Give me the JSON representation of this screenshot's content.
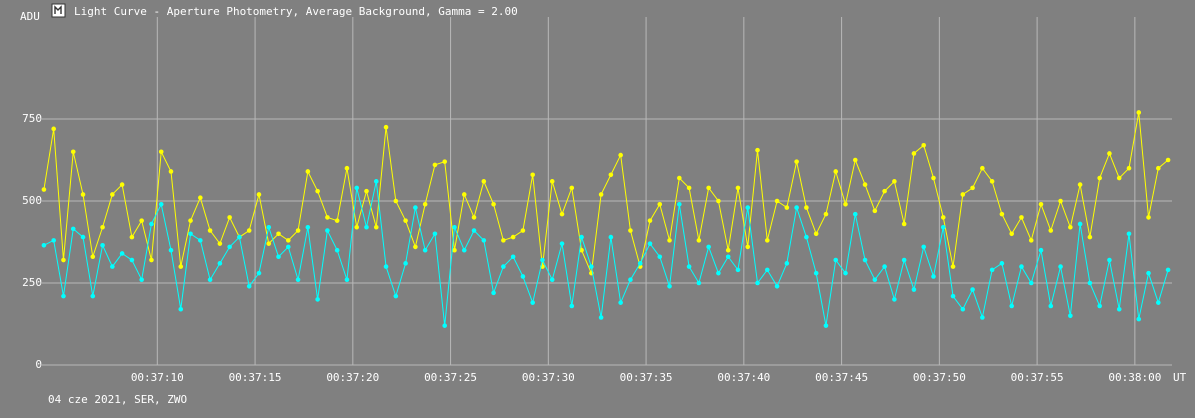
{
  "chart_data": {
    "type": "line",
    "title": "Light Curve - Aperture Photometry, Average Background, Gamma = 2.00",
    "y_label": "ADU",
    "x_label": "UT",
    "footer": "04 cze 2021, SER, ZWO",
    "grid": true,
    "xlim": [
      2224.0,
      2281.9
    ],
    "ylim": [
      0,
      1061
    ],
    "yticks": [
      0,
      250,
      500,
      750
    ],
    "xticks": [
      {
        "value": 2230,
        "label": "00:37:10"
      },
      {
        "value": 2235,
        "label": "00:37:15"
      },
      {
        "value": 2240,
        "label": "00:37:20"
      },
      {
        "value": 2245,
        "label": "00:37:25"
      },
      {
        "value": 2250,
        "label": "00:37:30"
      },
      {
        "value": 2255,
        "label": "00:37:35"
      },
      {
        "value": 2260,
        "label": "00:37:40"
      },
      {
        "value": 2265,
        "label": "00:37:45"
      },
      {
        "value": 2270,
        "label": "00:37:50"
      },
      {
        "value": 2275,
        "label": "00:37:55"
      },
      {
        "value": 2280,
        "label": "00:38:00"
      }
    ],
    "x": [
      2224.2,
      2224.7,
      2225.2,
      2225.7,
      2226.2,
      2226.7,
      2227.2,
      2227.7,
      2228.2,
      2228.7,
      2229.2,
      2229.7,
      2230.2,
      2230.7,
      2231.2,
      2231.7,
      2232.2,
      2232.7,
      2233.2,
      2233.7,
      2234.2,
      2234.7,
      2235.2,
      2235.7,
      2236.2,
      2236.7,
      2237.2,
      2237.7,
      2238.2,
      2238.7,
      2239.2,
      2239.7,
      2240.2,
      2240.7,
      2241.2,
      2241.7,
      2242.2,
      2242.7,
      2243.2,
      2243.7,
      2244.2,
      2244.7,
      2245.2,
      2245.7,
      2246.2,
      2246.7,
      2247.2,
      2247.7,
      2248.2,
      2248.7,
      2249.2,
      2249.7,
      2250.2,
      2250.7,
      2251.2,
      2251.7,
      2252.2,
      2252.7,
      2253.2,
      2253.7,
      2254.2,
      2254.7,
      2255.2,
      2255.7,
      2256.2,
      2256.7,
      2257.2,
      2257.7,
      2258.2,
      2258.7,
      2259.2,
      2259.7,
      2260.2,
      2260.7,
      2261.2,
      2261.7,
      2262.2,
      2262.7,
      2263.2,
      2263.7,
      2264.2,
      2264.7,
      2265.2,
      2265.7,
      2266.2,
      2266.7,
      2267.2,
      2267.7,
      2268.2,
      2268.7,
      2269.2,
      2269.7,
      2270.2,
      2270.7,
      2271.2,
      2271.7,
      2272.2,
      2272.7,
      2273.2,
      2273.7,
      2274.2,
      2274.7,
      2275.2,
      2275.7,
      2276.2,
      2276.7,
      2277.2,
      2277.7,
      2278.2,
      2278.7,
      2279.2,
      2279.7,
      2280.2,
      2280.7,
      2281.2,
      2281.7
    ],
    "series": [
      {
        "color": "#ffff00",
        "values": [
          535,
          720,
          320,
          650,
          520,
          330,
          420,
          520,
          550,
          390,
          440,
          320,
          650,
          590,
          300,
          440,
          510,
          410,
          370,
          450,
          390,
          410,
          520,
          370,
          400,
          380,
          410,
          590,
          530,
          450,
          440,
          600,
          420,
          530,
          420,
          725,
          500,
          440,
          360,
          490,
          610,
          620,
          350,
          520,
          450,
          560,
          490,
          380,
          390,
          410,
          580,
          300,
          560,
          460,
          540,
          350,
          280,
          520,
          580,
          640,
          410,
          300,
          440,
          490,
          380,
          570,
          540,
          380,
          540,
          500,
          350,
          540,
          360,
          655,
          380,
          500,
          480,
          620,
          480,
          400,
          460,
          590,
          490,
          625,
          550,
          470,
          530,
          560,
          430,
          645,
          670,
          570,
          450,
          300,
          520,
          540,
          600,
          560,
          460,
          400,
          450,
          380,
          490,
          410,
          500,
          420,
          550,
          390,
          570,
          645,
          570,
          600,
          770,
          450,
          600,
          625
        ]
      },
      {
        "color": "#00ffff",
        "values": [
          365,
          380,
          210,
          415,
          390,
          210,
          365,
          300,
          340,
          320,
          260,
          430,
          490,
          350,
          170,
          400,
          380,
          260,
          310,
          360,
          390,
          240,
          280,
          420,
          330,
          360,
          260,
          420,
          200,
          410,
          350,
          260,
          540,
          420,
          560,
          300,
          210,
          310,
          480,
          350,
          400,
          120,
          420,
          350,
          410,
          380,
          220,
          300,
          330,
          270,
          190,
          320,
          260,
          370,
          180,
          390,
          300,
          145,
          390,
          190,
          260,
          310,
          370,
          330,
          240,
          490,
          300,
          250,
          360,
          280,
          330,
          290,
          480,
          250,
          290,
          240,
          310,
          480,
          390,
          280,
          120,
          320,
          280,
          460,
          320,
          260,
          300,
          200,
          320,
          230,
          360,
          270,
          420,
          210,
          170,
          230,
          145,
          290,
          310,
          180,
          300,
          250,
          350,
          180,
          300,
          150,
          430,
          250,
          180,
          320,
          170,
          400,
          140,
          280,
          190,
          290
        ]
      }
    ]
  }
}
